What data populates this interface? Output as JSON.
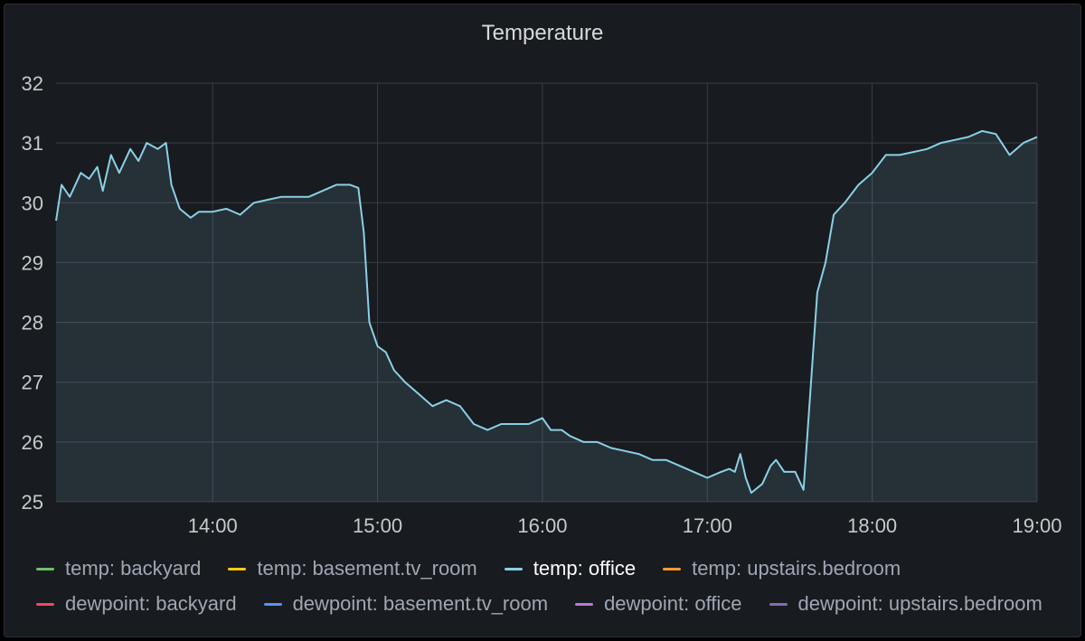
{
  "panel": {
    "title": "Temperature"
  },
  "chart_data": {
    "type": "line",
    "title": "Temperature",
    "xlabel": "",
    "ylabel": "",
    "xlim": [
      "13:03",
      "19:00"
    ],
    "ylim": [
      25,
      32
    ],
    "x_ticks": [
      "14:00",
      "15:00",
      "16:00",
      "17:00",
      "18:00",
      "19:00"
    ],
    "y_ticks": [
      25,
      26,
      27,
      28,
      29,
      30,
      31,
      32
    ],
    "grid": true,
    "legend_position": "bottom",
    "series": [
      {
        "name": "temp: backyard",
        "color": "#73bf69",
        "values": []
      },
      {
        "name": "temp: basement.tv_room",
        "color": "#f2cc0c",
        "values": []
      },
      {
        "name": "temp: office",
        "color": "#8ad0e6",
        "fill": true,
        "points": [
          [
            "13:03",
            29.7
          ],
          [
            "13:05",
            30.3
          ],
          [
            "13:08",
            30.1
          ],
          [
            "13:12",
            30.5
          ],
          [
            "13:15",
            30.4
          ],
          [
            "13:18",
            30.6
          ],
          [
            "13:20",
            30.2
          ],
          [
            "13:23",
            30.8
          ],
          [
            "13:26",
            30.5
          ],
          [
            "13:30",
            30.9
          ],
          [
            "13:33",
            30.7
          ],
          [
            "13:36",
            31.0
          ],
          [
            "13:40",
            30.9
          ],
          [
            "13:43",
            31.0
          ],
          [
            "13:45",
            30.3
          ],
          [
            "13:48",
            29.9
          ],
          [
            "13:52",
            29.75
          ],
          [
            "13:55",
            29.85
          ],
          [
            "14:00",
            29.85
          ],
          [
            "14:05",
            29.9
          ],
          [
            "14:10",
            29.8
          ],
          [
            "14:15",
            30.0
          ],
          [
            "14:20",
            30.05
          ],
          [
            "14:25",
            30.1
          ],
          [
            "14:30",
            30.1
          ],
          [
            "14:35",
            30.1
          ],
          [
            "14:40",
            30.2
          ],
          [
            "14:45",
            30.3
          ],
          [
            "14:50",
            30.3
          ],
          [
            "14:53",
            30.25
          ],
          [
            "14:55",
            29.5
          ],
          [
            "14:57",
            28.0
          ],
          [
            "15:00",
            27.6
          ],
          [
            "15:03",
            27.5
          ],
          [
            "15:06",
            27.2
          ],
          [
            "15:10",
            27.0
          ],
          [
            "15:15",
            26.8
          ],
          [
            "15:20",
            26.6
          ],
          [
            "15:25",
            26.7
          ],
          [
            "15:30",
            26.6
          ],
          [
            "15:35",
            26.3
          ],
          [
            "15:40",
            26.2
          ],
          [
            "15:45",
            26.3
          ],
          [
            "15:50",
            26.3
          ],
          [
            "15:55",
            26.3
          ],
          [
            "16:00",
            26.4
          ],
          [
            "16:03",
            26.2
          ],
          [
            "16:07",
            26.2
          ],
          [
            "16:10",
            26.1
          ],
          [
            "16:15",
            26.0
          ],
          [
            "16:20",
            26.0
          ],
          [
            "16:25",
            25.9
          ],
          [
            "16:30",
            25.85
          ],
          [
            "16:35",
            25.8
          ],
          [
            "16:40",
            25.7
          ],
          [
            "16:45",
            25.7
          ],
          [
            "16:50",
            25.6
          ],
          [
            "16:55",
            25.5
          ],
          [
            "17:00",
            25.4
          ],
          [
            "17:05",
            25.5
          ],
          [
            "17:08",
            25.55
          ],
          [
            "17:10",
            25.5
          ],
          [
            "17:12",
            25.8
          ],
          [
            "17:14",
            25.4
          ],
          [
            "17:16",
            25.15
          ],
          [
            "17:20",
            25.3
          ],
          [
            "17:23",
            25.6
          ],
          [
            "17:25",
            25.7
          ],
          [
            "17:28",
            25.5
          ],
          [
            "17:32",
            25.5
          ],
          [
            "17:35",
            25.2
          ],
          [
            "17:37",
            26.5
          ],
          [
            "17:40",
            28.5
          ],
          [
            "17:43",
            29.0
          ],
          [
            "17:46",
            29.8
          ],
          [
            "17:50",
            30.0
          ],
          [
            "17:55",
            30.3
          ],
          [
            "18:00",
            30.5
          ],
          [
            "18:05",
            30.8
          ],
          [
            "18:10",
            30.8
          ],
          [
            "18:15",
            30.85
          ],
          [
            "18:20",
            30.9
          ],
          [
            "18:25",
            31.0
          ],
          [
            "18:30",
            31.05
          ],
          [
            "18:35",
            31.1
          ],
          [
            "18:40",
            31.2
          ],
          [
            "18:45",
            31.15
          ],
          [
            "18:50",
            30.8
          ],
          [
            "18:55",
            31.0
          ],
          [
            "19:00",
            31.1
          ]
        ]
      },
      {
        "name": "temp: upstairs.bedroom",
        "color": "#ff9830",
        "values": []
      },
      {
        "name": "dewpoint: backyard",
        "color": "#f2495c",
        "values": []
      },
      {
        "name": "dewpoint: basement.tv_room",
        "color": "#5794f2",
        "values": []
      },
      {
        "name": "dewpoint: office",
        "color": "#b877d9",
        "values": []
      },
      {
        "name": "dewpoint: upstairs.bedroom",
        "color": "#806eb7",
        "values": []
      }
    ]
  }
}
